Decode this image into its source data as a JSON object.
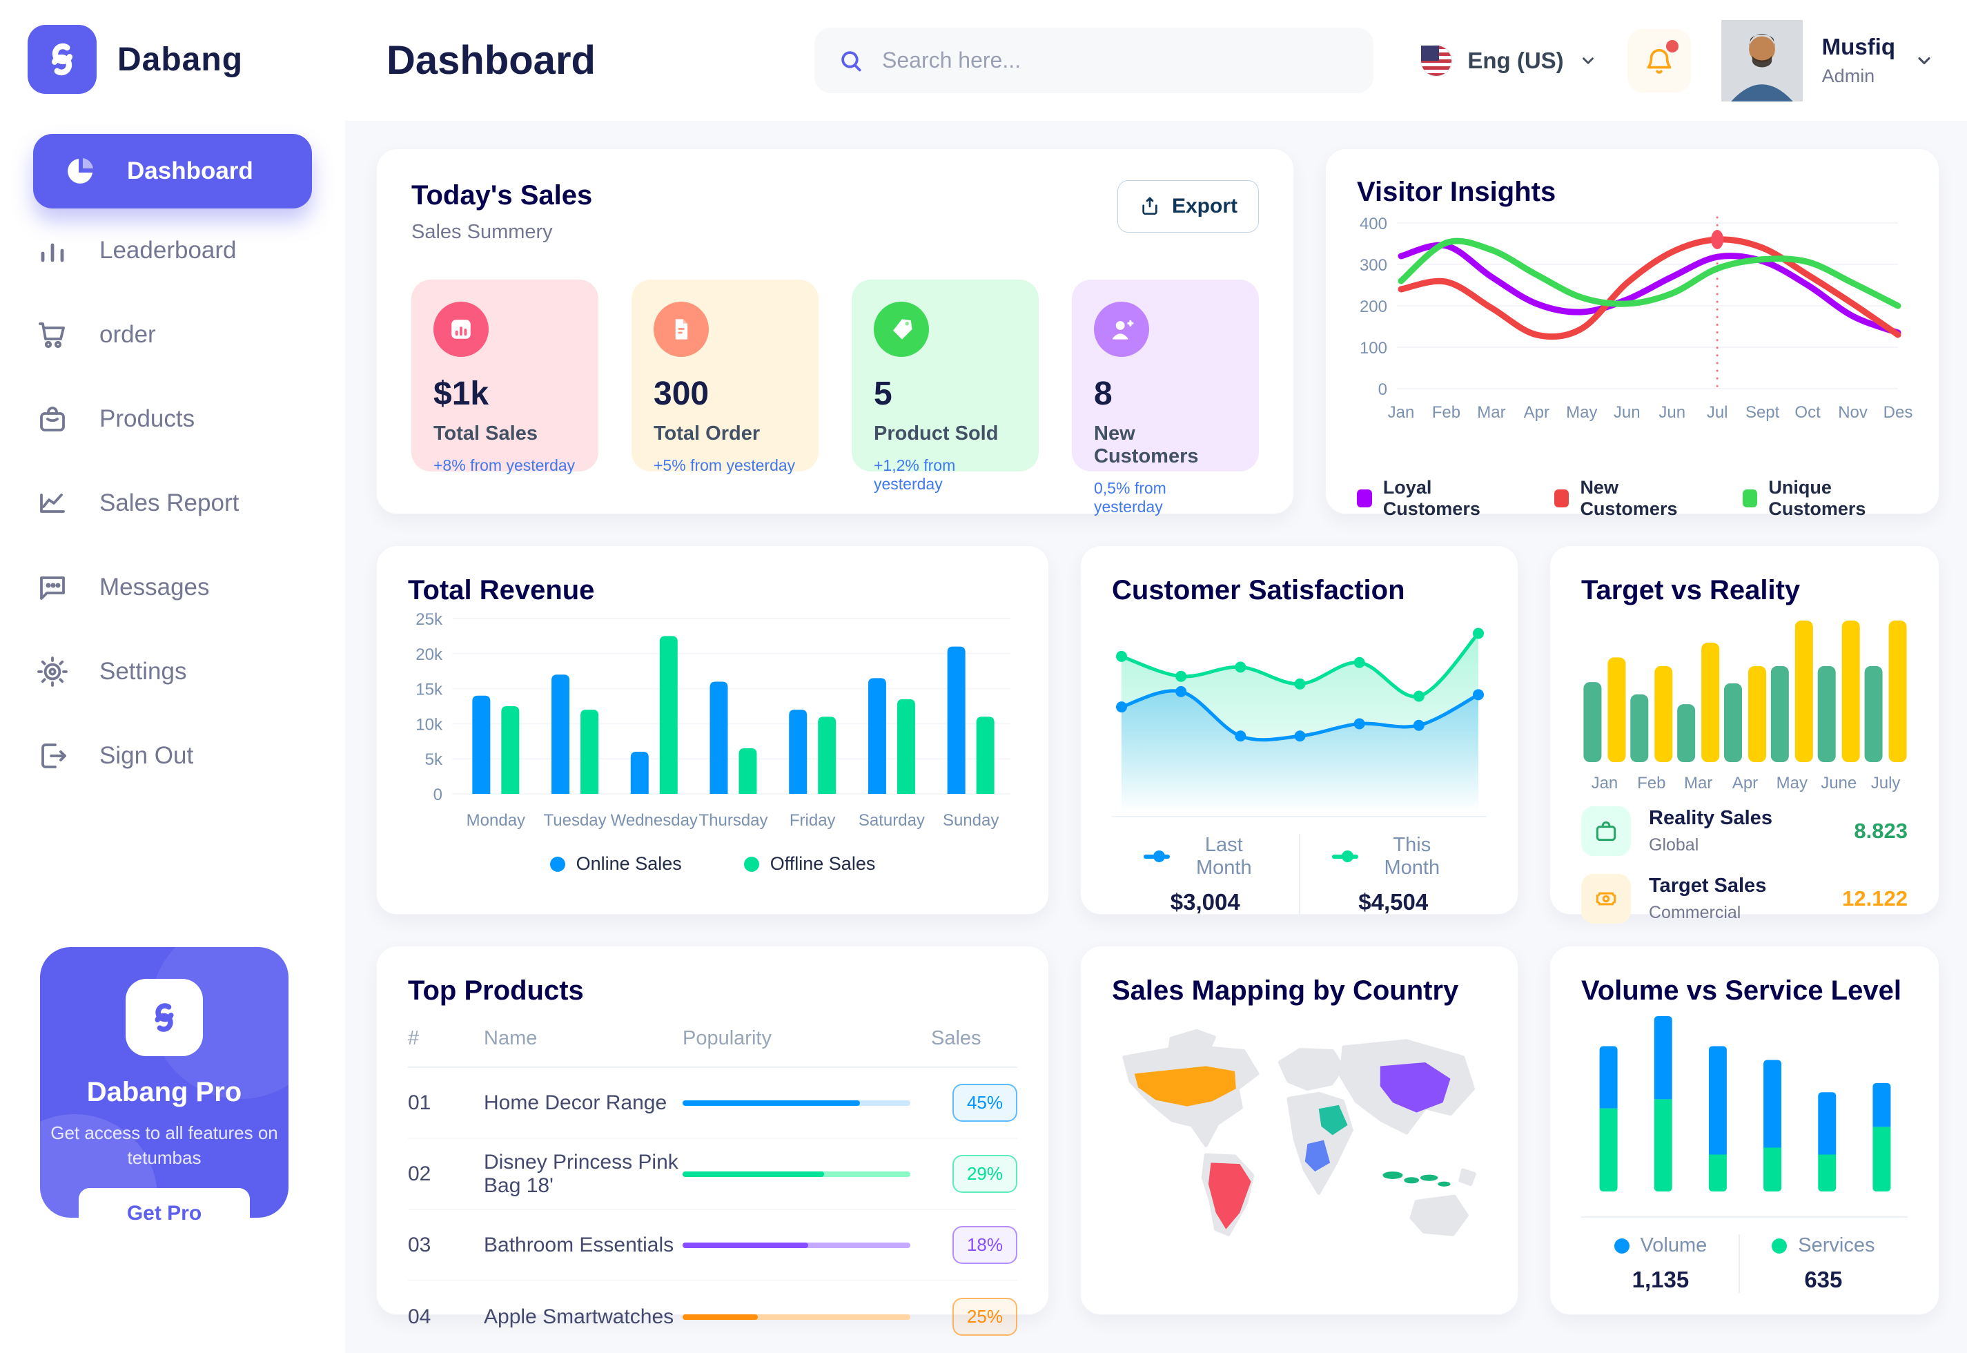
{
  "app": {
    "name": "Dabang"
  },
  "header": {
    "title": "Dashboard",
    "search_placeholder": "Search here...",
    "language": "Eng (US)",
    "user": {
      "name": "Musfiq",
      "role": "Admin"
    }
  },
  "sidebar": {
    "items": [
      {
        "label": "Dashboard",
        "icon": "pie-chart-icon",
        "active": true
      },
      {
        "label": "Leaderboard",
        "icon": "bar-chart-icon",
        "active": false
      },
      {
        "label": "order",
        "icon": "cart-icon",
        "active": false
      },
      {
        "label": "Products",
        "icon": "bag-icon",
        "active": false
      },
      {
        "label": "Sales Report",
        "icon": "line-chart-icon",
        "active": false
      },
      {
        "label": "Messages",
        "icon": "message-icon",
        "active": false
      },
      {
        "label": "Settings",
        "icon": "gear-icon",
        "active": false
      },
      {
        "label": "Sign Out",
        "icon": "sign-out-icon",
        "active": false
      }
    ],
    "pro_card": {
      "title": "Dabang Pro",
      "description": "Get access to all features on tetumbas",
      "button_label": "Get Pro"
    }
  },
  "today_sales": {
    "title": "Today's Sales",
    "subtitle": "Sales Summery",
    "export_label": "Export",
    "cards": [
      {
        "value": "$1k",
        "label": "Total Sales",
        "delta": "+8% from yesterday",
        "bg": "#FFE2E5",
        "accent": "#FA5A7D",
        "icon": "sales-chart-icon"
      },
      {
        "value": "300",
        "label": "Total Order",
        "delta": "+5% from yesterday",
        "bg": "#FFF4DE",
        "accent": "#FF947A",
        "icon": "order-file-icon"
      },
      {
        "value": "5",
        "label": "Product Sold",
        "delta": "+1,2% from yesterday",
        "bg": "#DCFCE7",
        "accent": "#3CD856",
        "icon": "tag-icon"
      },
      {
        "value": "8",
        "label": "New Customers",
        "delta": "0,5% from yesterday",
        "bg": "#F3E8FF",
        "accent": "#BF83FF",
        "icon": "user-plus-icon"
      }
    ]
  },
  "visitor_insights": {
    "title": "Visitor Insights",
    "chart_data": {
      "type": "line",
      "x": [
        "Jan",
        "Feb",
        "Mar",
        "Apr",
        "May",
        "Jun",
        "Jun",
        "Jul",
        "Sept",
        "Oct",
        "Nov",
        "Des"
      ],
      "ylim": [
        0,
        400
      ],
      "yticks": [
        0,
        100,
        200,
        300,
        400
      ],
      "series": [
        {
          "name": "Loyal Customers",
          "color": "#A700FF",
          "values": [
            320,
            345,
            270,
            205,
            185,
            215,
            270,
            318,
            308,
            250,
            175,
            135
          ]
        },
        {
          "name": "New Customers",
          "color": "#EF4444",
          "values": [
            240,
            258,
            195,
            130,
            145,
            255,
            330,
            360,
            340,
            275,
            205,
            130
          ]
        },
        {
          "name": "Unique Customers",
          "color": "#3CD856",
          "values": [
            260,
            352,
            335,
            275,
            220,
            205,
            230,
            290,
            312,
            306,
            255,
            200
          ]
        }
      ],
      "marker": {
        "series": "New Customers",
        "x_index": 7,
        "value": 360
      }
    }
  },
  "total_revenue": {
    "title": "Total Revenue",
    "chart_data": {
      "type": "bar",
      "categories": [
        "Monday",
        "Tuesday",
        "Wednesday",
        "Thursday",
        "Friday",
        "Saturday",
        "Sunday"
      ],
      "ylim": [
        0,
        25000
      ],
      "ytick_values": [
        0,
        5000,
        10000,
        15000,
        20000,
        25000
      ],
      "ytick_labels": [
        "0",
        "5k",
        "10k",
        "15k",
        "20k",
        "25k"
      ],
      "series": [
        {
          "name": "Online Sales",
          "color": "#0095FF",
          "values": [
            14000,
            17000,
            6000,
            16000,
            12000,
            16500,
            21000
          ]
        },
        {
          "name": "Offline Sales",
          "color": "#00E096",
          "values": [
            12500,
            12000,
            22500,
            6500,
            11000,
            13500,
            11000
          ]
        }
      ]
    }
  },
  "customer_satisfaction": {
    "title": "Customer Satisfaction",
    "chart_data": {
      "type": "area",
      "ylim": [
        0,
        100
      ],
      "series": [
        {
          "name": "Last Month",
          "color": "#0095FF",
          "total_label": "$3,004",
          "values": [
            45,
            55,
            26,
            26,
            34,
            33,
            53
          ]
        },
        {
          "name": "This Month",
          "color": "#00E096",
          "total_label": "$4,504",
          "values": [
            78,
            65,
            71,
            60,
            74,
            52,
            93
          ]
        }
      ]
    }
  },
  "target_vs_reality": {
    "title": "Target vs Reality",
    "chart_data": {
      "type": "bar",
      "categories": [
        "Jan",
        "Feb",
        "Mar",
        "Apr",
        "May",
        "June",
        "July"
      ],
      "ylim": [
        0,
        12
      ],
      "series": [
        {
          "name": "Reality Sales",
          "color": "#4AB58E",
          "values": [
            6.5,
            5.5,
            4.7,
            6.4,
            7.8,
            7.8,
            7.8
          ]
        },
        {
          "name": "Target Sales",
          "color": "#FFCF00",
          "values": [
            8.5,
            7.8,
            9.7,
            7.8,
            11.5,
            11.5,
            11.5
          ]
        }
      ]
    },
    "legend": [
      {
        "title": "Reality Sales",
        "subtitle": "Global",
        "value": "8.823",
        "value_color": "#27A468",
        "icon_bg": "#E2FFF3",
        "icon": "bag-icon"
      },
      {
        "title": "Target Sales",
        "subtitle": "Commercial",
        "value": "12.122",
        "value_color": "#FFA412",
        "icon_bg": "#FFF4DE",
        "icon": "ticket-icon"
      }
    ]
  },
  "top_products": {
    "title": "Top Products",
    "headers": {
      "num": "#",
      "name": "Name",
      "popularity": "Popularity",
      "sales": "Sales"
    },
    "rows": [
      {
        "num": "01",
        "name": "Home Decor Range",
        "popularity_pct": 78,
        "sales": "45%",
        "color": "#0095FF",
        "track": "#CDE7FF"
      },
      {
        "num": "02",
        "name": "Disney Princess Pink Bag 18'",
        "popularity_pct": 62,
        "sales": "29%",
        "color": "#00E096",
        "track": "#8CFAC7"
      },
      {
        "num": "03",
        "name": "Bathroom Essentials",
        "popularity_pct": 55,
        "sales": "18%",
        "color": "#884DFF",
        "track": "#C5A8FF"
      },
      {
        "num": "04",
        "name": "Apple Smartwatches",
        "popularity_pct": 33,
        "sales": "25%",
        "color": "#FF8F0D",
        "track": "#FFD5A4"
      }
    ]
  },
  "sales_mapping": {
    "title": "Sales Mapping by Country",
    "countries": [
      {
        "name": "United States",
        "color": "#FFA412"
      },
      {
        "name": "Brazil",
        "color": "#F64E60"
      },
      {
        "name": "DR Congo",
        "color": "#5E81F4"
      },
      {
        "name": "Saudi Arabia",
        "color": "#1FBFA0"
      },
      {
        "name": "China",
        "color": "#8950FC"
      },
      {
        "name": "Indonesia",
        "color": "#15B77C"
      }
    ]
  },
  "volume_service": {
    "title": "Volume vs Service Level",
    "chart_data": {
      "type": "bar-stacked",
      "series": [
        {
          "name": "Volume",
          "color": "#0095FF",
          "total_label": "1,135",
          "values": [
            27,
            36,
            47,
            38,
            27,
            19
          ]
        },
        {
          "name": "Services",
          "color": "#00E096",
          "total_label": "635",
          "values": [
            36,
            40,
            16,
            19,
            16,
            28
          ]
        }
      ]
    }
  }
}
